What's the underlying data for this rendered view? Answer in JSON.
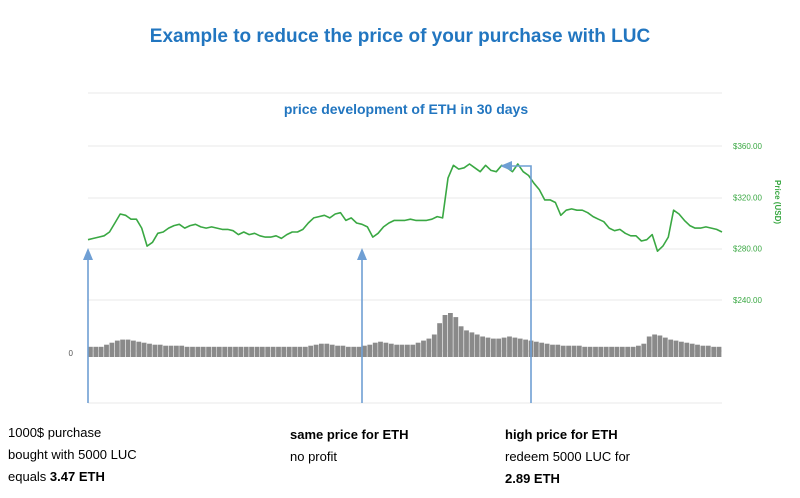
{
  "title": "Example to reduce the price of your purchase with LUC",
  "chart_data": {
    "type": "line",
    "title": "price development of ETH in 30 days",
    "ylabel": "Price (USD)",
    "yticks": [
      "$360.00",
      "$320.00",
      "$280.00",
      "$240.00"
    ],
    "ytick_values": [
      360,
      320,
      280,
      240
    ],
    "ylim": [
      200,
      372
    ],
    "volume_axis_label": "0",
    "grid": true,
    "series": [
      {
        "values": [
          287,
          288,
          289,
          290,
          293,
          300,
          307,
          306,
          303,
          303,
          296,
          282,
          285,
          292,
          293,
          296,
          298,
          299,
          296,
          298,
          299,
          297,
          296,
          297,
          296,
          295,
          295,
          294,
          291,
          293,
          291,
          292,
          290,
          289,
          289,
          290,
          288,
          291,
          293,
          293,
          295,
          300,
          304,
          305,
          306,
          304,
          307,
          308,
          302,
          304,
          300,
          299,
          297,
          289,
          292,
          297,
          300,
          302,
          302,
          302,
          303,
          302,
          302,
          302,
          303,
          305,
          304,
          335,
          345,
          342,
          343,
          346,
          343,
          340,
          345,
          341,
          340,
          345,
          343,
          340,
          346,
          340,
          337,
          331,
          326,
          318,
          318,
          316,
          306,
          310,
          311,
          310,
          310,
          308,
          305,
          303,
          301,
          296,
          294,
          295,
          292,
          290,
          290,
          286,
          287,
          291,
          278,
          282,
          289,
          310,
          307,
          302,
          298,
          296,
          296,
          297,
          296,
          295,
          293
        ]
      }
    ],
    "volume": [
      10,
      10,
      10,
      12,
      14,
      16,
      17,
      17,
      16,
      15,
      14,
      13,
      12,
      12,
      11,
      11,
      11,
      11,
      10,
      10,
      10,
      10,
      10,
      10,
      10,
      10,
      10,
      10,
      10,
      10,
      10,
      10,
      10,
      10,
      10,
      10,
      10,
      10,
      10,
      10,
      10,
      11,
      12,
      13,
      13,
      12,
      11,
      11,
      10,
      10,
      10,
      11,
      12,
      14,
      15,
      14,
      13,
      12,
      12,
      12,
      12,
      14,
      16,
      18,
      22,
      33,
      41,
      43,
      39,
      30,
      26,
      24,
      22,
      20,
      19,
      18,
      18,
      19,
      20,
      19,
      18,
      17,
      16,
      15,
      14,
      13,
      12,
      12,
      11,
      11,
      11,
      11,
      10,
      10,
      10,
      10,
      10,
      10,
      10,
      10,
      10,
      10,
      11,
      13,
      20,
      22,
      21,
      19,
      17,
      16,
      15,
      14,
      13,
      12,
      11,
      11,
      10,
      10
    ]
  },
  "annotations": [
    {
      "lines": [
        "1000$ purchase",
        "bought with 5000 LUC",
        "equals "
      ],
      "bold": "3.47 ETH"
    },
    {
      "bold_first": "same price for ETH",
      "lines": [
        "no profit"
      ]
    },
    {
      "bold_first": "high price for ETH",
      "lines": [
        "redeem 5000 LUC for"
      ],
      "bold": "2.89 ETH"
    }
  ],
  "colors": {
    "title": "#2276c0",
    "line": "#3aa843",
    "arrow": "#6f9fd4",
    "volume": "#8a8a8a",
    "axis_text": "#3aa843"
  }
}
